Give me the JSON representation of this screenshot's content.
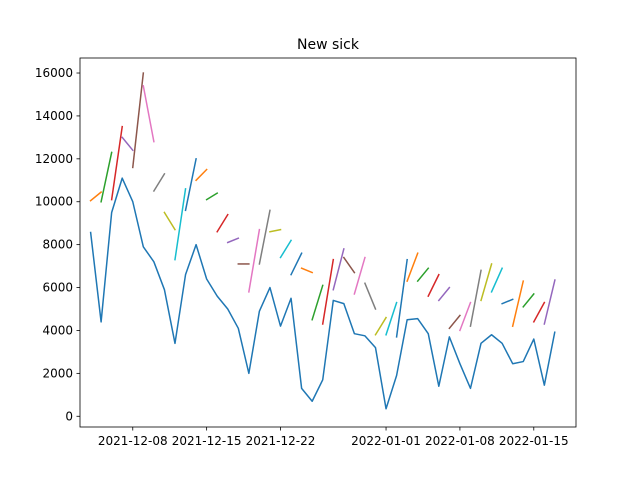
{
  "chart_data": {
    "type": "line",
    "title": "New sick",
    "xlabel": "",
    "ylabel": "",
    "x_axis": {
      "type": "date",
      "range": [
        "2021-12-03",
        "2022-01-19"
      ],
      "ticks": [
        "2021-12-08",
        "2021-12-15",
        "2021-12-22",
        "2022-01-01",
        "2022-01-08",
        "2022-01-15"
      ]
    },
    "y_axis": {
      "range": [
        -500,
        16700
      ],
      "ticks": [
        0,
        2000,
        4000,
        6000,
        8000,
        10000,
        12000,
        14000,
        16000
      ]
    },
    "grid": false,
    "legend": "none",
    "main_series": {
      "color": "#1f77b4",
      "points": [
        [
          "2021-12-04",
          8600
        ],
        [
          "2021-12-05",
          4400
        ],
        [
          "2021-12-06",
          9500
        ],
        [
          "2021-12-07",
          11100
        ],
        [
          "2021-12-08",
          10000
        ],
        [
          "2021-12-09",
          7900
        ],
        [
          "2021-12-10",
          7200
        ],
        [
          "2021-12-11",
          5900
        ],
        [
          "2021-12-12",
          3400
        ],
        [
          "2021-12-13",
          6600
        ],
        [
          "2021-12-14",
          8000
        ],
        [
          "2021-12-15",
          6400
        ],
        [
          "2021-12-16",
          5600
        ],
        [
          "2021-12-17",
          5000
        ],
        [
          "2021-12-18",
          4100
        ],
        [
          "2021-12-19",
          2000
        ],
        [
          "2021-12-20",
          4900
        ],
        [
          "2021-12-21",
          6000
        ],
        [
          "2021-12-22",
          4200
        ],
        [
          "2021-12-23",
          5500
        ],
        [
          "2021-12-24",
          1300
        ],
        [
          "2021-12-25",
          700
        ],
        [
          "2021-12-26",
          1700
        ],
        [
          "2021-12-27",
          5400
        ],
        [
          "2021-12-28",
          5250
        ],
        [
          "2021-12-29",
          3850
        ],
        [
          "2021-12-30",
          3750
        ],
        [
          "2021-12-31",
          3200
        ],
        [
          "2022-01-01",
          350
        ],
        [
          "2022-01-02",
          1900
        ],
        [
          "2022-01-03",
          4500
        ],
        [
          "2022-01-04",
          4550
        ],
        [
          "2022-01-05",
          3850
        ],
        [
          "2022-01-06",
          1400
        ],
        [
          "2022-01-07",
          3700
        ],
        [
          "2022-01-08",
          2450
        ],
        [
          "2022-01-09",
          1300
        ],
        [
          "2022-01-10",
          3400
        ],
        [
          "2022-01-11",
          3800
        ],
        [
          "2022-01-12",
          3400
        ],
        [
          "2022-01-13",
          2450
        ],
        [
          "2022-01-14",
          2550
        ],
        [
          "2022-01-15",
          3600
        ],
        [
          "2022-01-16",
          1450
        ],
        [
          "2022-01-17",
          3950
        ]
      ]
    },
    "segments": [
      {
        "color": "#ff7f0e",
        "points": [
          [
            "2021-12-04",
            10050
          ],
          [
            "2021-12-05",
            10450
          ]
        ]
      },
      {
        "color": "#2ca02c",
        "points": [
          [
            "2021-12-05",
            10000
          ],
          [
            "2021-12-06",
            12300
          ]
        ]
      },
      {
        "color": "#d62728",
        "points": [
          [
            "2021-12-06",
            10100
          ],
          [
            "2021-12-07",
            13500
          ]
        ]
      },
      {
        "color": "#9467bd",
        "points": [
          [
            "2021-12-07",
            13000
          ],
          [
            "2021-12-08",
            12400
          ]
        ]
      },
      {
        "color": "#8c564b",
        "points": [
          [
            "2021-12-08",
            11600
          ],
          [
            "2021-12-09",
            16000
          ]
        ]
      },
      {
        "color": "#e377c2",
        "points": [
          [
            "2021-12-09",
            15400
          ],
          [
            "2021-12-10",
            12800
          ]
        ]
      },
      {
        "color": "#7f7f7f",
        "points": [
          [
            "2021-12-10",
            10500
          ],
          [
            "2021-12-11",
            11300
          ]
        ]
      },
      {
        "color": "#bcbd22",
        "points": [
          [
            "2021-12-11",
            9500
          ],
          [
            "2021-12-12",
            8700
          ]
        ]
      },
      {
        "color": "#17becf",
        "points": [
          [
            "2021-12-12",
            7300
          ],
          [
            "2021-12-13",
            10600
          ]
        ]
      },
      {
        "color": "#1f77b4",
        "points": [
          [
            "2021-12-13",
            9600
          ],
          [
            "2021-12-14",
            12000
          ]
        ]
      },
      {
        "color": "#ff7f0e",
        "points": [
          [
            "2021-12-14",
            11000
          ],
          [
            "2021-12-15",
            11500
          ]
        ]
      },
      {
        "color": "#2ca02c",
        "points": [
          [
            "2021-12-15",
            10100
          ],
          [
            "2021-12-16",
            10400
          ]
        ]
      },
      {
        "color": "#d62728",
        "points": [
          [
            "2021-12-16",
            8600
          ],
          [
            "2021-12-17",
            9400
          ]
        ]
      },
      {
        "color": "#9467bd",
        "points": [
          [
            "2021-12-17",
            8100
          ],
          [
            "2021-12-18",
            8300
          ]
        ]
      },
      {
        "color": "#8c564b",
        "points": [
          [
            "2021-12-18",
            7100
          ],
          [
            "2021-12-19",
            7100
          ]
        ]
      },
      {
        "color": "#e377c2",
        "points": [
          [
            "2021-12-19",
            5800
          ],
          [
            "2021-12-20",
            8700
          ]
        ]
      },
      {
        "color": "#7f7f7f",
        "points": [
          [
            "2021-12-20",
            7100
          ],
          [
            "2021-12-21",
            9600
          ]
        ]
      },
      {
        "color": "#bcbd22",
        "points": [
          [
            "2021-12-21",
            8600
          ],
          [
            "2021-12-22",
            8700
          ]
        ]
      },
      {
        "color": "#17becf",
        "points": [
          [
            "2021-12-22",
            7400
          ],
          [
            "2021-12-23",
            8200
          ]
        ]
      },
      {
        "color": "#1f77b4",
        "points": [
          [
            "2021-12-23",
            6600
          ],
          [
            "2021-12-24",
            7600
          ]
        ]
      },
      {
        "color": "#ff7f0e",
        "points": [
          [
            "2021-12-24",
            6900
          ],
          [
            "2021-12-25",
            6700
          ]
        ]
      },
      {
        "color": "#2ca02c",
        "points": [
          [
            "2021-12-25",
            4500
          ],
          [
            "2021-12-26",
            6100
          ]
        ]
      },
      {
        "color": "#d62728",
        "points": [
          [
            "2021-12-26",
            4300
          ],
          [
            "2021-12-27",
            7300
          ]
        ]
      },
      {
        "color": "#9467bd",
        "points": [
          [
            "2021-12-27",
            5900
          ],
          [
            "2021-12-28",
            7800
          ]
        ]
      },
      {
        "color": "#8c564b",
        "points": [
          [
            "2021-12-28",
            7400
          ],
          [
            "2021-12-29",
            6700
          ]
        ]
      },
      {
        "color": "#e377c2",
        "points": [
          [
            "2021-12-29",
            5700
          ],
          [
            "2021-12-30",
            7400
          ]
        ]
      },
      {
        "color": "#7f7f7f",
        "points": [
          [
            "2021-12-30",
            6200
          ],
          [
            "2021-12-31",
            5000
          ]
        ]
      },
      {
        "color": "#bcbd22",
        "points": [
          [
            "2021-12-31",
            3800
          ],
          [
            "2022-01-01",
            4600
          ]
        ]
      },
      {
        "color": "#17becf",
        "points": [
          [
            "2022-01-01",
            3800
          ],
          [
            "2022-01-02",
            5300
          ]
        ]
      },
      {
        "color": "#1f77b4",
        "points": [
          [
            "2022-01-02",
            3700
          ],
          [
            "2022-01-03",
            7300
          ]
        ]
      },
      {
        "color": "#ff7f0e",
        "points": [
          [
            "2022-01-03",
            6300
          ],
          [
            "2022-01-04",
            7600
          ]
        ]
      },
      {
        "color": "#2ca02c",
        "points": [
          [
            "2022-01-04",
            6300
          ],
          [
            "2022-01-05",
            6900
          ]
        ]
      },
      {
        "color": "#d62728",
        "points": [
          [
            "2022-01-05",
            5600
          ],
          [
            "2022-01-06",
            6600
          ]
        ]
      },
      {
        "color": "#9467bd",
        "points": [
          [
            "2022-01-06",
            5400
          ],
          [
            "2022-01-07",
            6000
          ]
        ]
      },
      {
        "color": "#8c564b",
        "points": [
          [
            "2022-01-07",
            4100
          ],
          [
            "2022-01-08",
            4700
          ]
        ]
      },
      {
        "color": "#e377c2",
        "points": [
          [
            "2022-01-08",
            4000
          ],
          [
            "2022-01-09",
            5300
          ]
        ]
      },
      {
        "color": "#7f7f7f",
        "points": [
          [
            "2022-01-09",
            4200
          ],
          [
            "2022-01-10",
            6800
          ]
        ]
      },
      {
        "color": "#bcbd22",
        "points": [
          [
            "2022-01-10",
            5400
          ],
          [
            "2022-01-11",
            7100
          ]
        ]
      },
      {
        "color": "#17becf",
        "points": [
          [
            "2022-01-11",
            5800
          ],
          [
            "2022-01-12",
            6900
          ]
        ]
      },
      {
        "color": "#1f77b4",
        "points": [
          [
            "2022-01-12",
            5250
          ],
          [
            "2022-01-13",
            5450
          ]
        ]
      },
      {
        "color": "#ff7f0e",
        "points": [
          [
            "2022-01-13",
            4200
          ],
          [
            "2022-01-14",
            6300
          ]
        ]
      },
      {
        "color": "#2ca02c",
        "points": [
          [
            "2022-01-14",
            5100
          ],
          [
            "2022-01-15",
            5700
          ]
        ]
      },
      {
        "color": "#d62728",
        "points": [
          [
            "2022-01-15",
            4400
          ],
          [
            "2022-01-16",
            5300
          ]
        ]
      },
      {
        "color": "#9467bd",
        "points": [
          [
            "2022-01-16",
            4300
          ],
          [
            "2022-01-17",
            6350
          ]
        ]
      }
    ]
  }
}
